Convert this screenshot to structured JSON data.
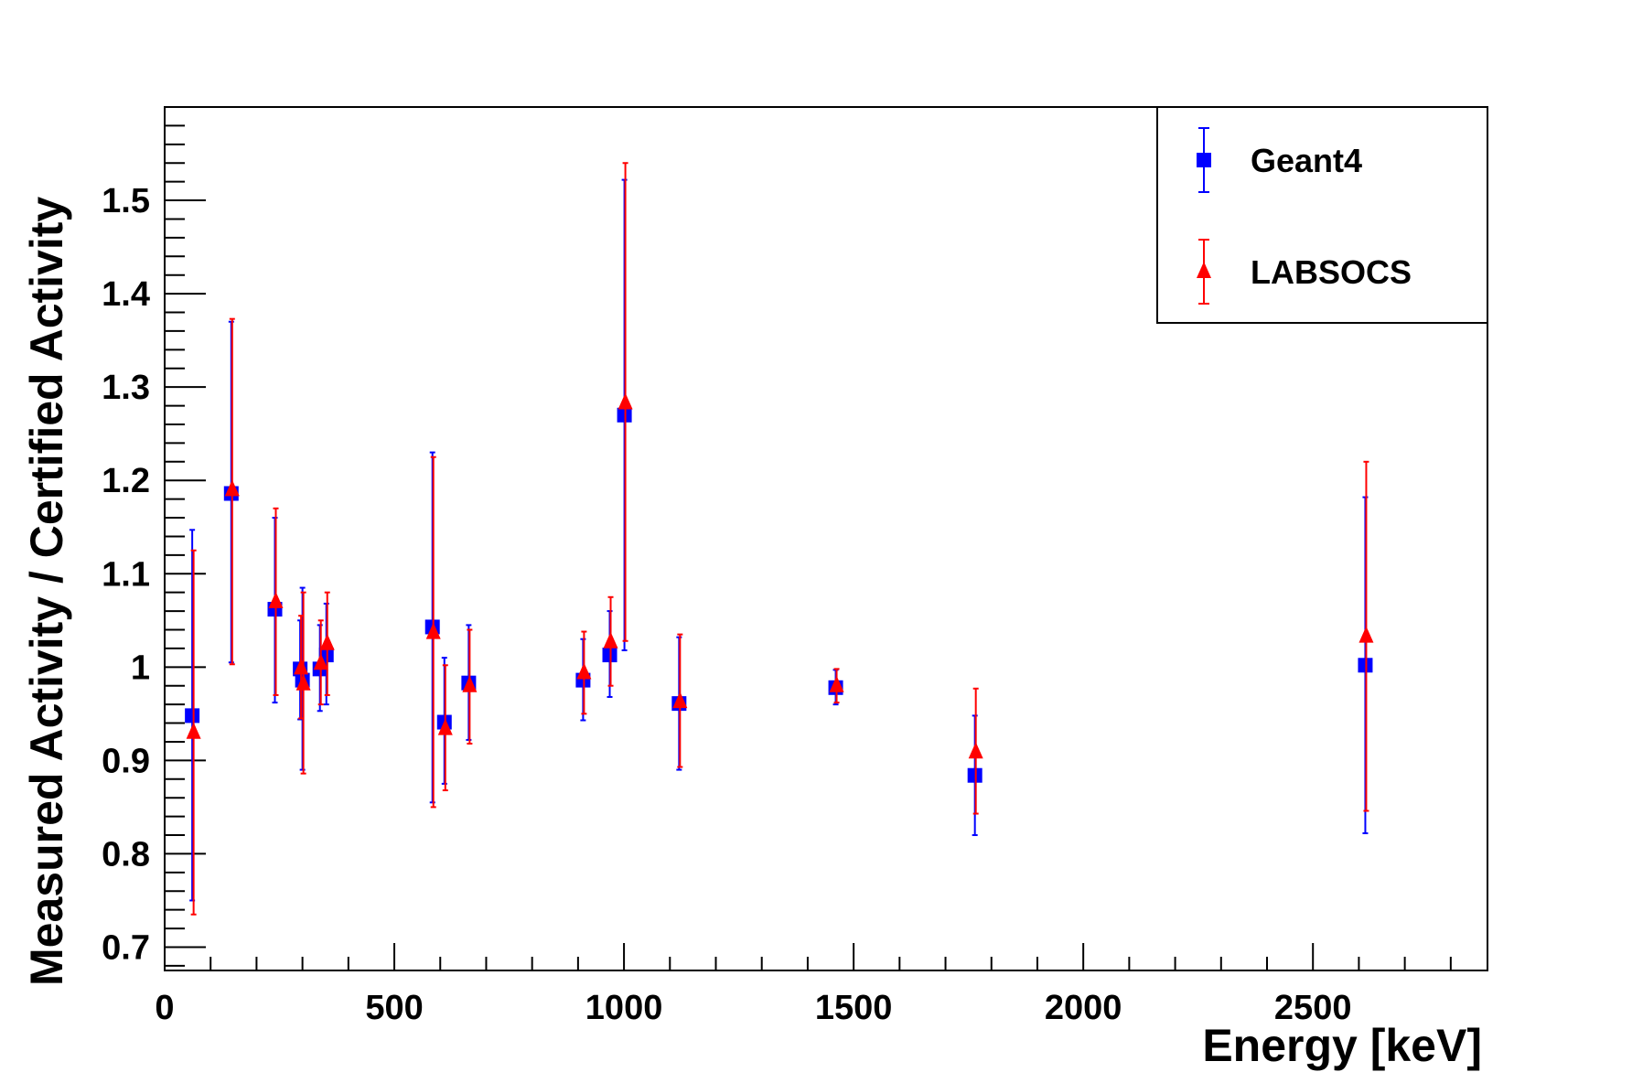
{
  "chart_data": {
    "type": "scatter",
    "xlabel": "Energy [keV]",
    "ylabel": "Measured Activity / Certified Activity",
    "xlim": [
      0,
      2880
    ],
    "ylim": [
      0.675,
      1.6
    ],
    "x_ticks": [
      0,
      500,
      1000,
      1500,
      2000,
      2500
    ],
    "x_tick_labels": [
      "0",
      "500",
      "1000",
      "1500",
      "2000",
      "2500"
    ],
    "y_ticks": [
      0.7,
      0.8,
      0.9,
      1.0,
      1.1,
      1.2,
      1.3,
      1.4,
      1.5
    ],
    "y_tick_labels": [
      "0.7",
      "0.8",
      "0.9",
      "1",
      "1.1",
      "1.2",
      "1.3",
      "1.4",
      "1.5"
    ],
    "grid": false,
    "legend_position": "top-right",
    "series": [
      {
        "name": "Geant4",
        "color": "#0000ff",
        "marker": "square",
        "points": [
          {
            "x": 60,
            "y": 0.948,
            "lo": 0.75,
            "hi": 1.147
          },
          {
            "x": 145,
            "y": 1.186,
            "lo": 1.005,
            "hi": 1.37
          },
          {
            "x": 240,
            "y": 1.062,
            "lo": 0.962,
            "hi": 1.16
          },
          {
            "x": 295,
            "y": 0.998,
            "lo": 0.944,
            "hi": 1.05
          },
          {
            "x": 300,
            "y": 0.986,
            "lo": 0.89,
            "hi": 1.085
          },
          {
            "x": 338,
            "y": 0.998,
            "lo": 0.953,
            "hi": 1.045
          },
          {
            "x": 352,
            "y": 1.013,
            "lo": 0.96,
            "hi": 1.068
          },
          {
            "x": 583,
            "y": 1.043,
            "lo": 0.855,
            "hi": 1.23
          },
          {
            "x": 609,
            "y": 0.941,
            "lo": 0.875,
            "hi": 1.01
          },
          {
            "x": 662,
            "y": 0.983,
            "lo": 0.922,
            "hi": 1.045
          },
          {
            "x": 911,
            "y": 0.986,
            "lo": 0.943,
            "hi": 1.03
          },
          {
            "x": 969,
            "y": 1.013,
            "lo": 0.968,
            "hi": 1.06
          },
          {
            "x": 1001,
            "y": 1.27,
            "lo": 1.018,
            "hi": 1.522
          },
          {
            "x": 1120,
            "y": 0.961,
            "lo": 0.89,
            "hi": 1.032
          },
          {
            "x": 1461,
            "y": 0.978,
            "lo": 0.96,
            "hi": 0.997
          },
          {
            "x": 1764,
            "y": 0.884,
            "lo": 0.82,
            "hi": 0.948
          },
          {
            "x": 2614,
            "y": 1.002,
            "lo": 0.822,
            "hi": 1.182
          }
        ]
      },
      {
        "name": "LABSOCS",
        "color": "#ff0000",
        "marker": "triangle",
        "points": [
          {
            "x": 63,
            "y": 0.93,
            "lo": 0.735,
            "hi": 1.125
          },
          {
            "x": 147,
            "y": 1.19,
            "lo": 1.003,
            "hi": 1.373
          },
          {
            "x": 242,
            "y": 1.07,
            "lo": 0.97,
            "hi": 1.17
          },
          {
            "x": 297,
            "y": 0.999,
            "lo": 0.945,
            "hi": 1.055
          },
          {
            "x": 302,
            "y": 0.982,
            "lo": 0.886,
            "hi": 1.08
          },
          {
            "x": 340,
            "y": 1.004,
            "lo": 0.96,
            "hi": 1.05
          },
          {
            "x": 354,
            "y": 1.025,
            "lo": 0.97,
            "hi": 1.08
          },
          {
            "x": 585,
            "y": 1.037,
            "lo": 0.85,
            "hi": 1.225
          },
          {
            "x": 611,
            "y": 0.934,
            "lo": 0.868,
            "hi": 1.002
          },
          {
            "x": 664,
            "y": 0.98,
            "lo": 0.918,
            "hi": 1.04
          },
          {
            "x": 913,
            "y": 0.994,
            "lo": 0.95,
            "hi": 1.038
          },
          {
            "x": 971,
            "y": 1.027,
            "lo": 0.98,
            "hi": 1.075
          },
          {
            "x": 1003,
            "y": 1.283,
            "lo": 1.028,
            "hi": 1.54
          },
          {
            "x": 1122,
            "y": 0.963,
            "lo": 0.893,
            "hi": 1.035
          },
          {
            "x": 1463,
            "y": 0.98,
            "lo": 0.962,
            "hi": 0.998
          },
          {
            "x": 1766,
            "y": 0.909,
            "lo": 0.843,
            "hi": 0.977
          },
          {
            "x": 2616,
            "y": 1.033,
            "lo": 0.846,
            "hi": 1.22
          }
        ]
      }
    ]
  }
}
